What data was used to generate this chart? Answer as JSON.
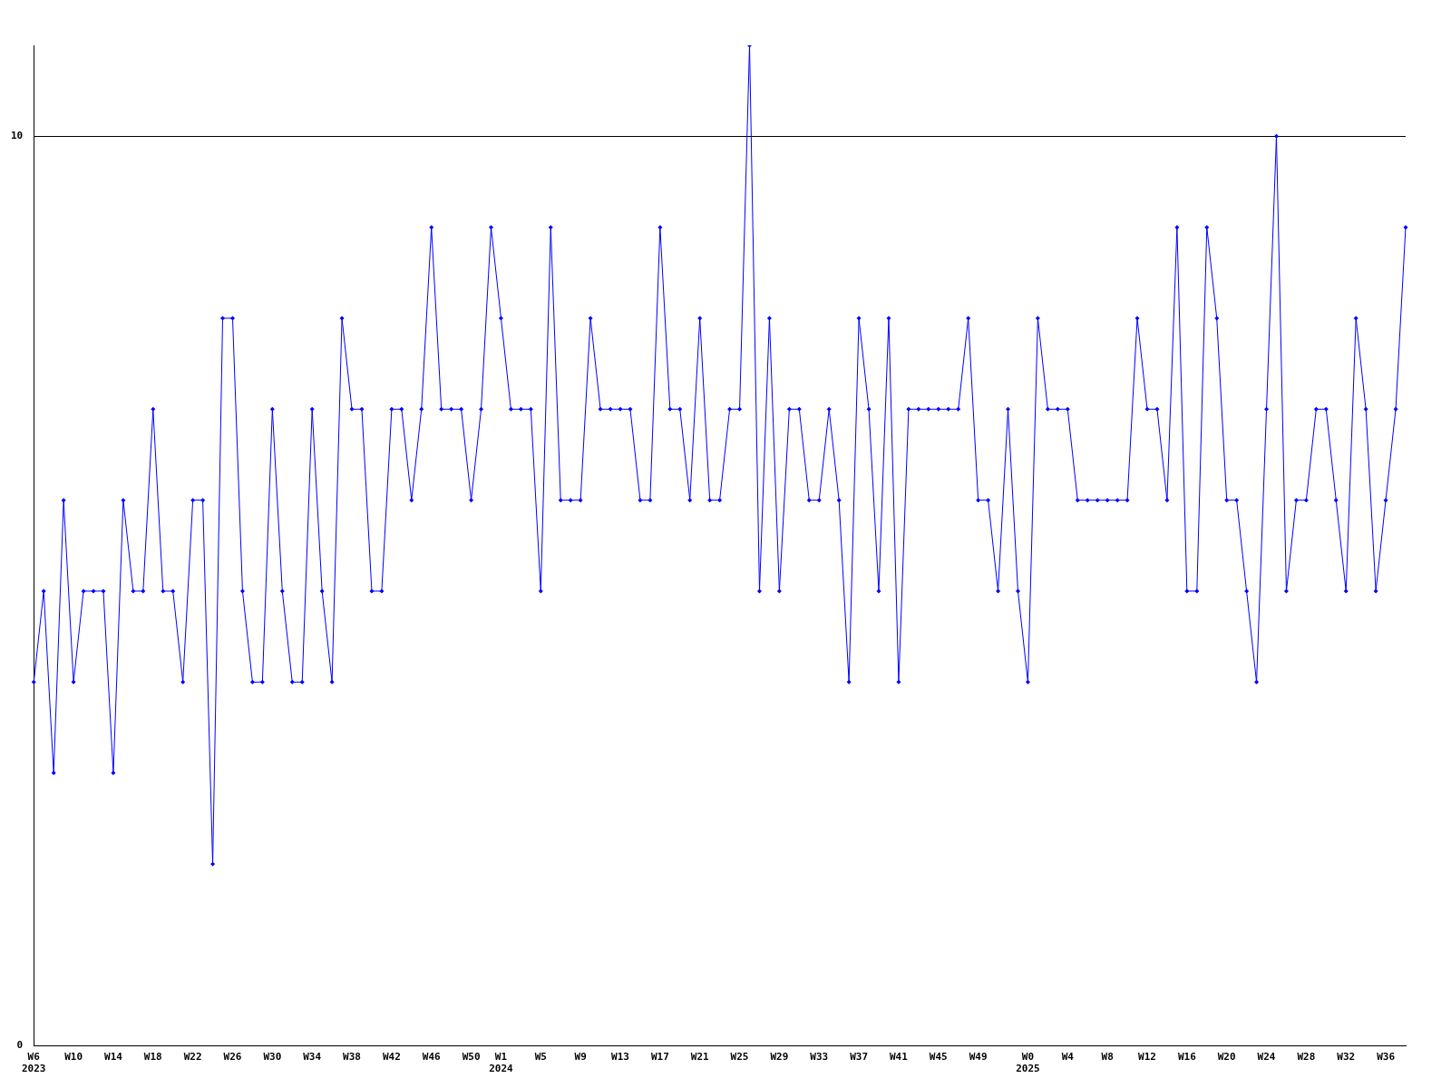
{
  "chart_data": {
    "type": "line",
    "categories": [
      "W6\n2023",
      null,
      null,
      null,
      "W10",
      null,
      null,
      null,
      "W14",
      null,
      null,
      null,
      "W18",
      null,
      null,
      null,
      "W22",
      null,
      null,
      null,
      "W26",
      null,
      null,
      null,
      "W30",
      null,
      null,
      null,
      "W34",
      null,
      null,
      null,
      "W38",
      null,
      null,
      null,
      "W42",
      null,
      null,
      null,
      "W46",
      null,
      null,
      null,
      "W50",
      null,
      null,
      "W1\n2024",
      null,
      null,
      null,
      "W5",
      null,
      null,
      null,
      "W9",
      null,
      null,
      null,
      "W13",
      null,
      null,
      null,
      "W17",
      null,
      null,
      null,
      "W21",
      null,
      null,
      null,
      "W25",
      null,
      null,
      null,
      "W29",
      null,
      null,
      null,
      "W33",
      null,
      null,
      null,
      "W37",
      null,
      null,
      null,
      "W41",
      null,
      null,
      null,
      "W45",
      null,
      null,
      null,
      "W49",
      null,
      null,
      null,
      null,
      "W0\n2025",
      null,
      null,
      null,
      "W4",
      null,
      null,
      null,
      "W8",
      null,
      null,
      null,
      "W12",
      null,
      null,
      null,
      "W16",
      null,
      null,
      null,
      "W20",
      null,
      null,
      null,
      "W24",
      null,
      null,
      null,
      "W28",
      null,
      null,
      null,
      "W32",
      null,
      null,
      null,
      "W36",
      null,
      null
    ],
    "series": [
      {
        "color": "#0000ff",
        "values": [
          4,
          5,
          3,
          6,
          4,
          5,
          5,
          5,
          3,
          6,
          5,
          5,
          7,
          5,
          5,
          4,
          6,
          6,
          2,
          8,
          8,
          5,
          4,
          4,
          7,
          5,
          4,
          4,
          7,
          5,
          4,
          8,
          7,
          7,
          5,
          5,
          7,
          7,
          6,
          7,
          9,
          7,
          7,
          7,
          6,
          7,
          9,
          8,
          7,
          7,
          7,
          5,
          9,
          6,
          6,
          6,
          8,
          7,
          7,
          7,
          7,
          6,
          6,
          9,
          7,
          7,
          6,
          8,
          6,
          6,
          7,
          7,
          11,
          5,
          8,
          5,
          7,
          7,
          6,
          6,
          7,
          6,
          4,
          8,
          7,
          5,
          8,
          4,
          7,
          7,
          7,
          7,
          7,
          7,
          8,
          6,
          6,
          5,
          7,
          5,
          4,
          8,
          7,
          7,
          7,
          6,
          6,
          6,
          6,
          6,
          6,
          8,
          7,
          7,
          6,
          9,
          5,
          5,
          9,
          8,
          6,
          6,
          5,
          4,
          7,
          10,
          5,
          6,
          6,
          7,
          7,
          6,
          5,
          8,
          7,
          5,
          6,
          7,
          9
        ]
      }
    ],
    "ylim": [
      0,
      11
    ],
    "yticks": [
      0,
      10
    ],
    "grid": "y",
    "legend": false,
    "marker": "diamond",
    "line_style": "solid"
  }
}
